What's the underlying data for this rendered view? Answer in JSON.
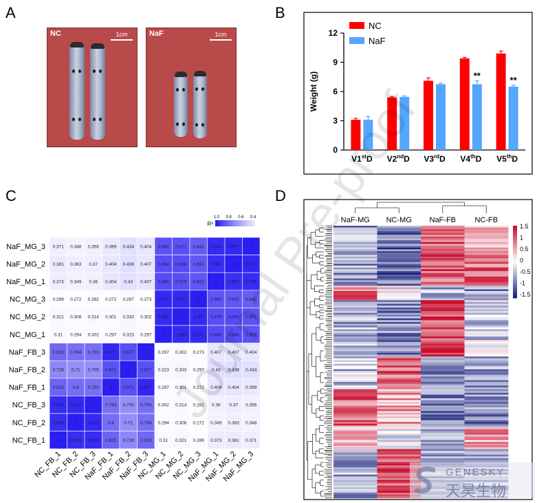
{
  "panels": {
    "A": "A",
    "B": "B",
    "C": "C",
    "D": "D"
  },
  "panel_a": {
    "left": {
      "label": "NC",
      "scale": "1cm"
    },
    "right": {
      "label": "NaF",
      "scale": "1cm"
    }
  },
  "watermark": "Journal Pre-proof",
  "logo": {
    "en": "GENESKY",
    "zh": "天昊生物"
  },
  "chart_data": [
    {
      "type": "bar",
      "panel": "B",
      "categories": [
        "V1stD",
        "V2ndD",
        "V3rdD",
        "V4thD",
        "V5thD"
      ],
      "category_parts": [
        {
          "base": "V1",
          "sup": "st",
          "end": "D"
        },
        {
          "base": "V2",
          "sup": "nd",
          "end": "D"
        },
        {
          "base": "V3",
          "sup": "rd",
          "end": "D"
        },
        {
          "base": "V4",
          "sup": "th",
          "end": "D"
        },
        {
          "base": "V5",
          "sup": "th",
          "end": "D"
        }
      ],
      "series": [
        {
          "name": "NC",
          "color": "#ff0000",
          "values": [
            3.1,
            5.4,
            7.1,
            9.4,
            9.9
          ],
          "errors": [
            0.15,
            0.1,
            0.3,
            0.1,
            0.25
          ]
        },
        {
          "name": "NaF",
          "color": "#55a6ff",
          "values": [
            3.1,
            5.45,
            6.75,
            6.75,
            6.5
          ],
          "errors": [
            0.35,
            0.1,
            0.1,
            0.35,
            0.15
          ]
        }
      ],
      "significance": [
        "",
        "",
        "",
        "**",
        "**"
      ],
      "ylabel": "Weight (g)",
      "ylim": [
        0,
        12
      ],
      "yticks": [
        0,
        3,
        6,
        9,
        12
      ],
      "legend_position": "top-left"
    },
    {
      "type": "heatmap",
      "panel": "C",
      "rows": [
        "NaF_MG_3",
        "NaF_MG_2",
        "NaF_MG_1",
        "NC_MG_3",
        "NC_MG_2",
        "NC_MG_1",
        "NaF_FB_3",
        "NaF_FB_2",
        "NaF_FB_1",
        "NC_FB_3",
        "NC_FB_2",
        "NC_FB_1"
      ],
      "columns": [
        "NC_FB_1",
        "NC_FB_2",
        "NC_FB_3",
        "NaF_FB_1",
        "NaF_FB_2",
        "NaF_FB_3",
        "NC_MG_1",
        "NC_MG_2",
        "NC_MG_3",
        "NaF_MG_1",
        "NaF_MG_2",
        "NaF_MG_3"
      ],
      "values": [
        [
          "0.371",
          "0.348",
          "0.356",
          "0.399",
          "0.434",
          "0.404",
          "0.868",
          "0.871",
          "0.842",
          "0.966",
          "0.977",
          "1"
        ],
        [
          "0.381",
          "0.363",
          "0.37",
          "0.404",
          "0.438",
          "0.407",
          "0.884",
          "0.886",
          "0.855",
          "0.961",
          "1",
          "0.977"
        ],
        [
          "0.373",
          "0.349",
          "0.36",
          "0.404",
          "0.43",
          "0.407",
          "0.886",
          "0.879",
          "0.862",
          "1",
          "0.961",
          "0.966"
        ],
        [
          "0.289",
          "0.272",
          "0.282",
          "0.272",
          "0.297",
          "0.273",
          "0.971",
          "0.97",
          "1",
          "0.862",
          "0.855",
          "0.842"
        ],
        [
          "0.321",
          "0.308",
          "0.314",
          "0.301",
          "0.333",
          "0.302",
          "0.969",
          "1",
          "0.97",
          "0.879",
          "0.886",
          "0.871"
        ],
        [
          "0.31",
          "0.294",
          "0.302",
          "0.297",
          "0.323",
          "0.297",
          "1",
          "0.969",
          "0.971",
          "0.886",
          "0.884",
          "0.868"
        ],
        [
          "0.815",
          "0.794",
          "0.793",
          "0.977",
          "0.877",
          "1",
          "0.297",
          "0.302",
          "0.273",
          "0.407",
          "0.407",
          "0.404"
        ],
        [
          "0.728",
          "0.71",
          "0.705",
          "0.871",
          "1",
          "0.877",
          "0.323",
          "0.333",
          "0.297",
          "0.43",
          "0.438",
          "0.434"
        ],
        [
          "0.825",
          "0.8",
          "0.793",
          "1",
          "0.871",
          "0.977",
          "0.297",
          "0.301",
          "0.272",
          "0.404",
          "0.404",
          "0.399"
        ],
        [
          "0.966",
          "0.973",
          "1",
          "0.793",
          "0.705",
          "0.793",
          "0.302",
          "0.314",
          "0.282",
          "0.36",
          "0.37",
          "0.356"
        ],
        [
          "0.965",
          "1",
          "0.973",
          "0.8",
          "0.71",
          "0.794",
          "0.294",
          "0.308",
          "0.272",
          "0.349",
          "0.363",
          "0.348"
        ],
        [
          "1",
          "0.965",
          "0.966",
          "0.825",
          "0.728",
          "0.815",
          "0.31",
          "0.321",
          "0.289",
          "0.373",
          "0.381",
          "0.371"
        ]
      ],
      "colorbar": {
        "label": "R²",
        "ticks": [
          "1.0",
          "0.8",
          "0.6",
          "0.4"
        ],
        "high_color": "#2a1ef0",
        "low_color": "#ffffff"
      }
    },
    {
      "type": "heatmap",
      "panel": "D",
      "columns": [
        "NaF-MG",
        "NC-MG",
        "NaF-FB",
        "NC-FB"
      ],
      "colorbar": {
        "ticks": [
          "1.5",
          "1",
          "0.5",
          "0",
          "-0.5",
          "-1",
          "-1.5"
        ],
        "high_color": "#c8102e",
        "mid_color": "#ffffff",
        "low_color": "#1a237e"
      }
    }
  ]
}
